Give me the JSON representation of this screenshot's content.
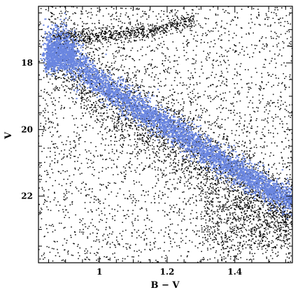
{
  "chart_data": {
    "type": "scatter",
    "title": "",
    "xlabel": "B − V",
    "ylabel": "V",
    "xlim": [
      0.82,
      1.57
    ],
    "ylim": [
      24.0,
      16.3
    ],
    "y_inverted": true,
    "x_ticks": [
      {
        "value": 1.0,
        "label": "1"
      },
      {
        "value": 1.2,
        "label": "1.2"
      },
      {
        "value": 1.4,
        "label": "1.4"
      }
    ],
    "y_ticks": [
      {
        "value": 18,
        "label": "18"
      },
      {
        "value": 20,
        "label": "20"
      },
      {
        "value": 22,
        "label": "22"
      }
    ],
    "grid": false,
    "legend": "none",
    "series": [
      {
        "role": "field_stars",
        "color": "#000000",
        "marker": "dot",
        "density_model": "uniform scatter plus overdensities along main sequence, red giant branch near V~17.2, and red clump at lower right",
        "anchor_points": [
          [
            0.86,
            16.6
          ],
          [
            0.95,
            16.9
          ],
          [
            1.05,
            16.7
          ],
          [
            1.15,
            17.0
          ],
          [
            1.2,
            16.6
          ],
          [
            1.25,
            17.2
          ],
          [
            0.9,
            17.3
          ],
          [
            1.3,
            21.6
          ],
          [
            1.4,
            22.2
          ],
          [
            1.5,
            22.9
          ],
          [
            1.45,
            23.2
          ]
        ]
      },
      {
        "role": "main_sequence_ridge",
        "color": "#6a86e0",
        "marker": "dot",
        "ridge_points": [
          [
            0.84,
            17.7
          ],
          [
            0.87,
            17.45
          ],
          [
            0.9,
            17.5
          ],
          [
            0.93,
            17.9
          ],
          [
            0.98,
            18.4
          ],
          [
            1.05,
            18.95
          ],
          [
            1.12,
            19.4
          ],
          [
            1.2,
            19.9
          ],
          [
            1.28,
            20.4
          ],
          [
            1.36,
            20.95
          ],
          [
            1.45,
            21.5
          ],
          [
            1.55,
            22.05
          ]
        ],
        "width_mag": 0.22
      }
    ]
  }
}
